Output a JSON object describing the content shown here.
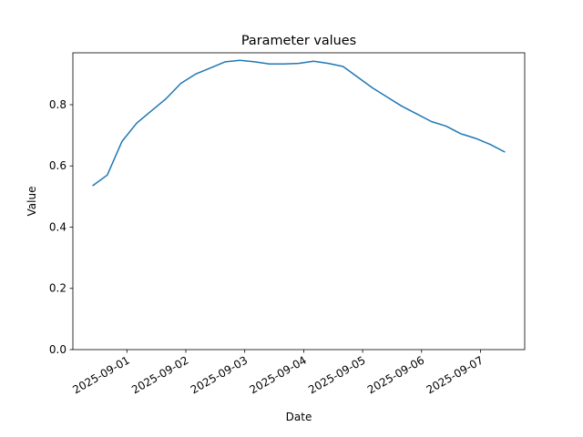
{
  "chart_data": {
    "type": "line",
    "title": "Parameter values",
    "x_label": "Date",
    "y_label": "Value",
    "x": [
      "2025-08-31T10:00",
      "2025-08-31T16:00",
      "2025-08-31T22:00",
      "2025-09-01T04:00",
      "2025-09-01T10:00",
      "2025-09-01T16:00",
      "2025-09-01T22:00",
      "2025-09-02T04:00",
      "2025-09-02T10:00",
      "2025-09-02T16:00",
      "2025-09-02T22:00",
      "2025-09-03T04:00",
      "2025-09-03T10:00",
      "2025-09-03T16:00",
      "2025-09-03T22:00",
      "2025-09-04T04:00",
      "2025-09-04T10:00",
      "2025-09-04T16:00",
      "2025-09-04T22:00",
      "2025-09-05T04:00",
      "2025-09-05T10:00",
      "2025-09-05T16:00",
      "2025-09-05T22:00",
      "2025-09-06T04:00",
      "2025-09-06T10:00",
      "2025-09-06T16:00",
      "2025-09-06T22:00",
      "2025-09-07T04:00",
      "2025-09-07T10:00"
    ],
    "series": [
      {
        "name": "Parameter",
        "color": "#1f77b4",
        "values": [
          0.535,
          0.57,
          0.68,
          0.74,
          0.78,
          0.82,
          0.87,
          0.9,
          0.92,
          0.94,
          0.945,
          0.94,
          0.933,
          0.933,
          0.935,
          0.942,
          0.935,
          0.925,
          0.89,
          0.855,
          0.825,
          0.795,
          0.77,
          0.745,
          0.73,
          0.705,
          0.69,
          0.67,
          0.645
        ]
      }
    ],
    "xlim": [
      "2025-08-31T02:00",
      "2025-09-07T18:00"
    ],
    "xticks": [
      "2025-09-01",
      "2025-09-02",
      "2025-09-03",
      "2025-09-04",
      "2025-09-05",
      "2025-09-06",
      "2025-09-07"
    ],
    "ylim": [
      0,
      0.9695
    ],
    "yticks": [
      {
        "value": 0,
        "label": "0.0"
      },
      0.2,
      0.4,
      0.6,
      0.8
    ],
    "grid": false
  }
}
